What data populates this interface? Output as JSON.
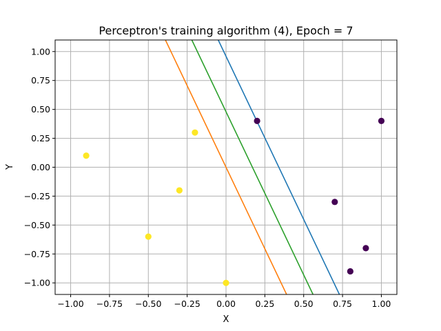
{
  "chart_data": {
    "type": "scatter",
    "title": "Perceptron's training algorithm (4), Epoch = 7",
    "xlabel": "X",
    "ylabel": "Y",
    "xlim": [
      -1.1,
      1.1
    ],
    "ylim": [
      -1.1,
      1.1
    ],
    "grid": true,
    "xticks": [
      -1.0,
      -0.75,
      -0.5,
      -0.25,
      0.0,
      0.25,
      0.5,
      0.75,
      1.0
    ],
    "xtick_labels": [
      "−1.00",
      "−0.75",
      "−0.50",
      "−0.25",
      "0.00",
      "0.25",
      "0.50",
      "0.75",
      "1.00"
    ],
    "yticks": [
      -1.0,
      -0.75,
      -0.5,
      -0.25,
      0.0,
      0.25,
      0.5,
      0.75,
      1.0
    ],
    "ytick_labels": [
      "−1.00",
      "−0.75",
      "−0.50",
      "−0.25",
      "0.00",
      "0.25",
      "0.50",
      "0.75",
      "1.00"
    ],
    "points": [
      {
        "x": -0.9,
        "y": 0.1,
        "class": 1
      },
      {
        "x": -0.5,
        "y": -0.6,
        "class": 1
      },
      {
        "x": -0.3,
        "y": -0.2,
        "class": 1
      },
      {
        "x": -0.2,
        "y": 0.3,
        "class": 1
      },
      {
        "x": 0.0,
        "y": -1.0,
        "class": 1
      },
      {
        "x": 0.2,
        "y": 0.4,
        "class": 0
      },
      {
        "x": 0.7,
        "y": -0.3,
        "class": 0
      },
      {
        "x": 0.8,
        "y": -0.9,
        "class": 0
      },
      {
        "x": 0.9,
        "y": -0.7,
        "class": 0
      },
      {
        "x": 1.0,
        "y": 0.4,
        "class": 0
      }
    ],
    "class_colors": {
      "0": "#440154",
      "1": "#fde725"
    },
    "lines": [
      {
        "color": "#1f77b4",
        "p1": [
          0.73,
          -1.1
        ],
        "p2": [
          -0.05,
          1.1
        ]
      },
      {
        "color": "#ff7f0e",
        "p1": [
          0.39,
          -1.1
        ],
        "p2": [
          -0.39,
          1.1
        ]
      },
      {
        "color": "#2ca02c",
        "p1": [
          0.56,
          -1.1
        ],
        "p2": [
          -0.22,
          1.1
        ]
      }
    ]
  }
}
